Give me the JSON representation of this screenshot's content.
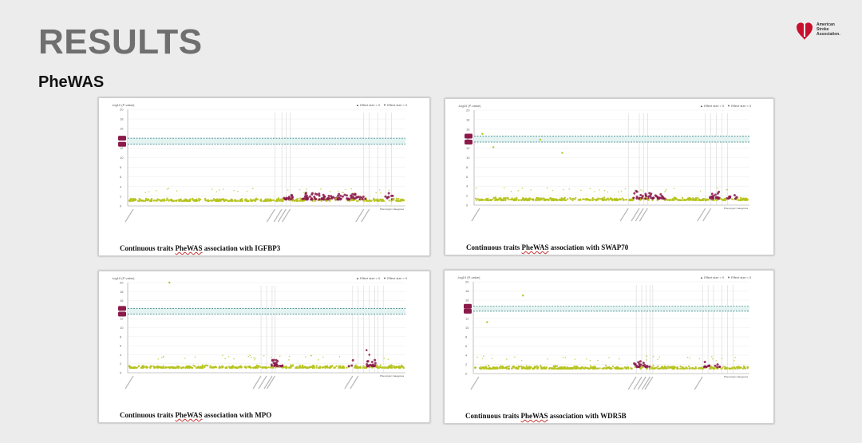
{
  "slide": {
    "title": "RESULTS",
    "subtitle": "PheWAS",
    "logo": {
      "icon": "heart-torch-icon",
      "color": "#c8102e",
      "lines": [
        "American",
        "Stroke",
        "Association."
      ]
    }
  },
  "panels": [
    {
      "id": "igfbp3",
      "caption_prefix": "Continuous traits ",
      "caption_hl": "PheWAS",
      "caption_suffix": " association with IGFBP3",
      "ylabel": "-log10 (P-value)",
      "legend_pos": "Effect size > 0",
      "legend_neg": "Effect size < 0",
      "yticks": [
        "0",
        "2",
        "4",
        "6",
        "8",
        "10",
        "12",
        "14",
        "16",
        "18",
        "20"
      ],
      "xlabel": "Phenotypic Categories"
    },
    {
      "id": "swap70",
      "caption_prefix": "Continuous traits ",
      "caption_hl": "PheWAS",
      "caption_suffix": " association with SWAP70",
      "ylabel": "-log10 (P-value)",
      "legend_pos": "Effect size > 0",
      "legend_neg": "Effect size < 0",
      "yticks": [
        "0",
        "2",
        "4",
        "6",
        "8",
        "10",
        "12",
        "14",
        "16",
        "18",
        "20"
      ],
      "xlabel": "Phenotypic Categories"
    },
    {
      "id": "mpo",
      "caption_prefix": "Continuous traits ",
      "caption_hl": "PheWAS",
      "caption_suffix": " association with MPO",
      "ylabel": "-log10 (P-value)",
      "legend_pos": "Effect size > 0",
      "legend_neg": "Effect size < 0",
      "yticks": [
        "0",
        "2",
        "4",
        "6",
        "8",
        "10",
        "12",
        "14",
        "16",
        "18",
        "20"
      ],
      "xlabel": "Phenotypic Categories"
    },
    {
      "id": "wdr5b",
      "caption_prefix": "Continuous traits ",
      "caption_hl": "PheWAS",
      "caption_suffix": " association with WDR5B",
      "ylabel": "-log10 (P-value)",
      "legend_pos": "Effect size > 0",
      "legend_neg": "Effect size < 0",
      "yticks": [
        "0",
        "2",
        "4",
        "6",
        "8",
        "10",
        "12",
        "14",
        "16",
        "18",
        "20"
      ],
      "xlabel": "Phenotypic Categories"
    }
  ],
  "colors": {
    "background": "#ececec",
    "positive": "#b5c21b",
    "negative": "#8b1a4a",
    "threshold": "#2b7a7a"
  }
}
